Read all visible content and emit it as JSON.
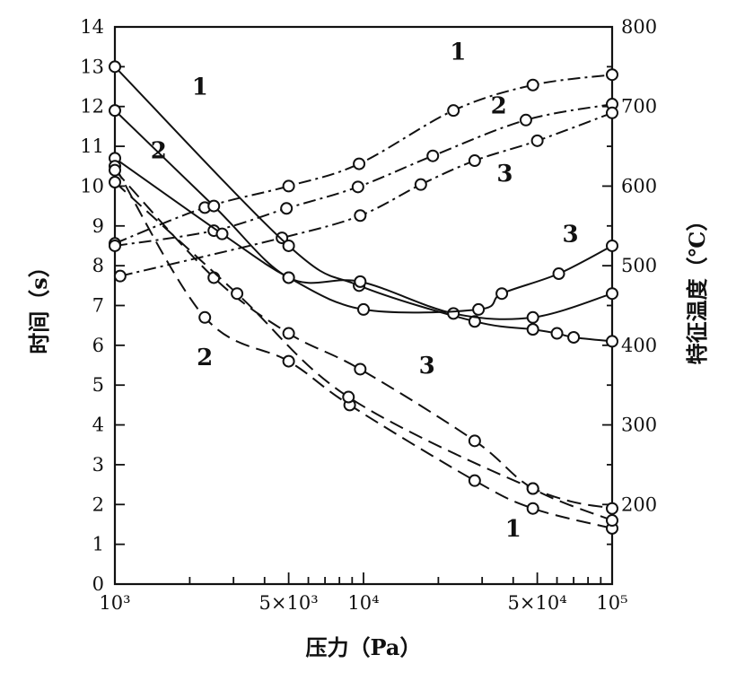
{
  "chart_data": {
    "type": "line",
    "xlabel": "压力（Pa）",
    "ylabel_left": "时间（s）",
    "ylabel_right": "特征温度（℃）",
    "xscale": "log",
    "xlim": [
      1000,
      100000
    ],
    "ylim_left": [
      0,
      14
    ],
    "ylim_right": [
      100,
      800
    ],
    "x_ticks": [
      {
        "value": 1000,
        "label": "10³"
      },
      {
        "value": 5000,
        "label": "5×10³"
      },
      {
        "value": 10000,
        "label": "10⁴"
      },
      {
        "value": 50000,
        "label": "5×10⁴"
      },
      {
        "value": 100000,
        "label": "10⁵"
      }
    ],
    "y_ticks_left": [
      "0",
      "1",
      "2",
      "3",
      "4",
      "5",
      "6",
      "7",
      "8",
      "9",
      "10",
      "11",
      "12",
      "13",
      "14"
    ],
    "y_ticks_right": [
      "200",
      "300",
      "400",
      "500",
      "600",
      "700",
      "800"
    ],
    "grid": false,
    "series": [
      {
        "name": "1",
        "axis": "right",
        "style": "dashdot",
        "label_pos": [
          24000,
          759
        ],
        "x": [
          1000,
          2300,
          5000,
          9600,
          23000,
          48000,
          100000
        ],
        "y": [
          528,
          573,
          600,
          628,
          695,
          727,
          740
        ]
      },
      {
        "name": "2",
        "axis": "right",
        "style": "dashdot",
        "label_pos": [
          35000,
          691
        ],
        "x": [
          1000,
          2500,
          4900,
          9500,
          19000,
          45000,
          100000
        ],
        "y": [
          525,
          544,
          572,
          599,
          638,
          683,
          703
        ]
      },
      {
        "name": "3",
        "axis": "right",
        "style": "dashdot",
        "label_pos": [
          37000,
          606
        ],
        "x": [
          1050,
          4700,
          9700,
          17000,
          28000,
          50000,
          100000
        ],
        "y": [
          487,
          535,
          563,
          602,
          632,
          657,
          692
        ]
      },
      {
        "name": "1",
        "axis": "left",
        "style": "solid",
        "label_pos": [
          2200,
          12.3
        ],
        "x": [
          1000,
          5000,
          9600,
          28000,
          48000,
          60000,
          70000,
          100000
        ],
        "y": [
          13.0,
          8.5,
          7.5,
          6.6,
          6.4,
          6.3,
          6.2,
          6.1
        ]
      },
      {
        "name": "2",
        "axis": "left",
        "style": "solid",
        "label_pos": [
          1500,
          10.7
        ],
        "x": [
          1000,
          2500,
          5000,
          9700,
          23000,
          48000,
          100000
        ],
        "y": [
          11.9,
          9.5,
          7.7,
          7.6,
          6.8,
          6.7,
          7.3
        ]
      },
      {
        "name": "3",
        "axis": "left",
        "style": "solid",
        "label_pos": [
          68000,
          8.6
        ],
        "x": [
          1000,
          2700,
          5000,
          10000,
          29000,
          36000,
          61000,
          100000
        ],
        "y": [
          10.7,
          8.8,
          7.7,
          6.9,
          6.9,
          7.3,
          7.8,
          8.5
        ]
      },
      {
        "name": "1",
        "axis": "left",
        "style": "dashed",
        "label_pos": [
          40000,
          1.2
        ],
        "x": [
          1000,
          2300,
          5000,
          8800,
          28000,
          48000,
          100000
        ],
        "y": [
          10.5,
          6.7,
          5.6,
          4.5,
          2.6,
          1.9,
          1.4
        ]
      },
      {
        "name": "2",
        "axis": "left",
        "style": "dashed",
        "label_pos": [
          2300,
          5.5
        ],
        "x": [
          1000,
          2500,
          5000,
          9700,
          28000,
          48000,
          100000
        ],
        "y": [
          10.4,
          7.7,
          6.3,
          5.4,
          3.6,
          2.4,
          1.6
        ]
      },
      {
        "name": "3",
        "axis": "left",
        "style": "dashed",
        "label_pos": [
          18000,
          5.3
        ],
        "x": [
          1000,
          3100,
          8700,
          48000,
          100000
        ],
        "y": [
          10.1,
          7.3,
          4.7,
          2.4,
          1.9
        ]
      }
    ]
  }
}
